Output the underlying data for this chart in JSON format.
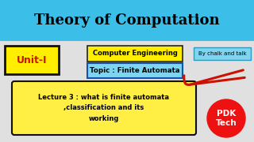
{
  "bg_color": "#e8e8e8",
  "header_color": "#3bbfe8",
  "header_text": "Theory of Computation",
  "header_text_color": "#000000",
  "unit_box_text": "Unit-I",
  "unit_box_facecolor": "#ffee00",
  "unit_box_edgecolor": "#111111",
  "unit_text_color": "#cc1100",
  "comp_eng_text": "Computer Engineering",
  "comp_eng_facecolor": "#ffee00",
  "comp_eng_edgecolor": "#222222",
  "chalk_text": "By chalk and talk",
  "chalk_facecolor": "#7fd4f0",
  "chalk_edgecolor": "#3399bb",
  "topic_text": "Topic : Finite Automata",
  "topic_facecolor": "#7fd4f0",
  "topic_edgecolor": "#1155aa",
  "topic_text_color": "#000000",
  "lecture_text": "Lecture 3 : what is finite automata\n,classification and its\nworking",
  "lecture_facecolor": "#ffee44",
  "lecture_edgecolor": "#111111",
  "lecture_text_color": "#000000",
  "pdk_text": "PDK\nTech",
  "pdk_circle_color": "#ee1111",
  "pdk_text_color": "#ffffff",
  "arrow_color": "#cc1100"
}
